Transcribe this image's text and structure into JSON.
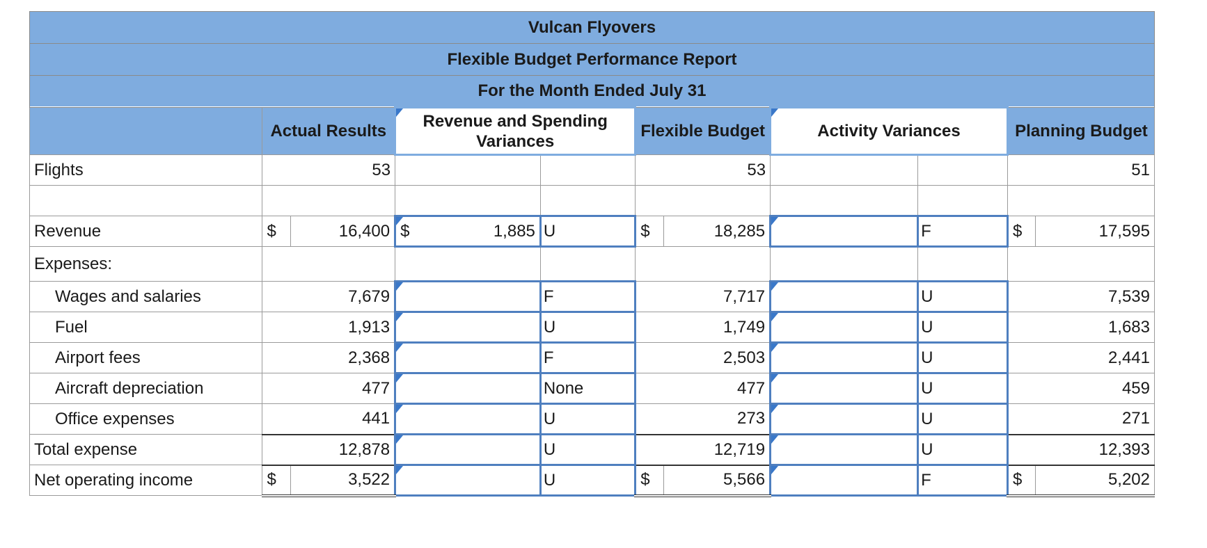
{
  "report": {
    "company": "Vulcan Flyovers",
    "title": "Flexible Budget Performance Report",
    "period": "For the Month Ended July 31"
  },
  "headers": {
    "actual": "Actual Results",
    "rev_spend": "Revenue and Spending Variances",
    "flexible": "Flexible Budget",
    "activity": "Activity Variances",
    "planning": "Planning Budget"
  },
  "rows": {
    "flights": {
      "label": "Flights",
      "actual": "53",
      "flexible": "53",
      "planning": "51"
    },
    "revenue": {
      "label": "Revenue",
      "dollar": "$",
      "actual": "16,400",
      "rs_amount": "1,885",
      "rs_fu": "U",
      "flexible": "18,285",
      "act_amount": "",
      "act_fu": "F",
      "planning": "17,595"
    },
    "expenses_label": "Expenses:",
    "wages": {
      "label": "Wages and salaries",
      "actual": "7,679",
      "rs_amount": "",
      "rs_fu": "F",
      "flexible": "7,717",
      "act_amount": "",
      "act_fu": "U",
      "planning": "7,539"
    },
    "fuel": {
      "label": "Fuel",
      "actual": "1,913",
      "rs_amount": "",
      "rs_fu": "U",
      "flexible": "1,749",
      "act_amount": "",
      "act_fu": "U",
      "planning": "1,683"
    },
    "airport": {
      "label": "Airport fees",
      "actual": "2,368",
      "rs_amount": "",
      "rs_fu": "F",
      "flexible": "2,503",
      "act_amount": "",
      "act_fu": "U",
      "planning": "2,441"
    },
    "depreciation": {
      "label": "Aircraft depreciation",
      "actual": "477",
      "rs_amount": "",
      "rs_fu": "None",
      "flexible": "477",
      "act_amount": "",
      "act_fu": "U",
      "planning": "459"
    },
    "office": {
      "label": "Office expenses",
      "actual": "441",
      "rs_amount": "",
      "rs_fu": "U",
      "flexible": "273",
      "act_amount": "",
      "act_fu": "U",
      "planning": "271"
    },
    "total": {
      "label": "Total expense",
      "actual": "12,878",
      "rs_amount": "",
      "rs_fu": "U",
      "flexible": "12,719",
      "act_amount": "",
      "act_fu": "U",
      "planning": "12,393"
    },
    "noi": {
      "label": "Net operating income",
      "dollar": "$",
      "actual": "3,522",
      "rs_amount": "",
      "rs_fu": "U",
      "flexible": "5,566",
      "act_amount": "",
      "act_fu": "F",
      "planning": "5,202"
    }
  },
  "colors": {
    "header_bg": "#7facdf",
    "input_border": "#4f7fbf",
    "flag": "#3a78c9"
  }
}
